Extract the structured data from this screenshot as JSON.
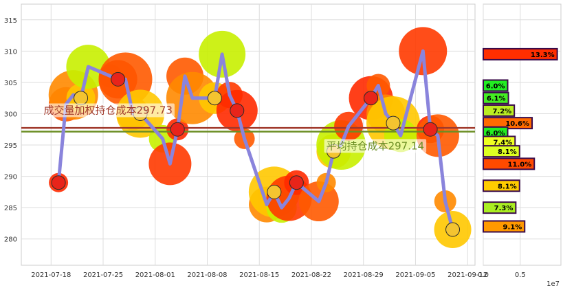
{
  "chart_data": {
    "type": "line",
    "main": {
      "x_ticks": [
        "2021-07-18",
        "2021-07-25",
        "2021-08-01",
        "2021-08-08",
        "2021-08-15",
        "2021-08-22",
        "2021-08-29",
        "2021-09-05",
        "2021-09-12"
      ],
      "y_ticks": [
        280,
        285,
        290,
        295,
        300,
        305,
        310,
        315
      ],
      "xlim": [
        "2021-07-14",
        "2021-09-13"
      ],
      "ylim": [
        275.8,
        317.5
      ],
      "grid": true,
      "series": [
        {
          "color": "#8a84dc",
          "points": [
            [
              "2021-07-19",
              289.0
            ],
            [
              "2021-07-20",
              301.5
            ],
            [
              "2021-07-21",
              303.0
            ],
            [
              "2021-07-22",
              302.5
            ],
            [
              "2021-07-23",
              307.5
            ],
            [
              "2021-07-26",
              306.0
            ],
            [
              "2021-07-27",
              305.5
            ],
            [
              "2021-07-28",
              305.5
            ],
            [
              "2021-07-29",
              300.0
            ],
            [
              "2021-07-30",
              300.0
            ],
            [
              "2021-08-02",
              296.0
            ],
            [
              "2021-08-03",
              292.0
            ],
            [
              "2021-08-04",
              297.5
            ],
            [
              "2021-08-05",
              306.0
            ],
            [
              "2021-08-06",
              302.5
            ],
            [
              "2021-08-09",
              302.5
            ],
            [
              "2021-08-10",
              309.5
            ],
            [
              "2021-08-11",
              303.0
            ],
            [
              "2021-08-12",
              300.5
            ],
            [
              "2021-08-13",
              296.0
            ],
            [
              "2021-08-16",
              285.5
            ],
            [
              "2021-08-17",
              287.5
            ],
            [
              "2021-08-18",
              285.0
            ],
            [
              "2021-08-19",
              286.5
            ],
            [
              "2021-08-20",
              289.0
            ],
            [
              "2021-08-23",
              286.0
            ],
            [
              "2021-08-24",
              289.0
            ],
            [
              "2021-08-25",
              294.0
            ],
            [
              "2021-08-26",
              295.0
            ],
            [
              "2021-08-27",
              298.0
            ],
            [
              "2021-08-30",
              302.5
            ],
            [
              "2021-08-31",
              304.5
            ],
            [
              "2021-09-01",
              300.0
            ],
            [
              "2021-09-02",
              298.5
            ],
            [
              "2021-09-03",
              296.5
            ],
            [
              "2021-09-06",
              310.0
            ],
            [
              "2021-09-07",
              297.5
            ],
            [
              "2021-09-08",
              296.5
            ],
            [
              "2021-09-09",
              286.0
            ],
            [
              "2021-09-10",
              281.5
            ]
          ]
        }
      ],
      "hlines": [
        {
          "value": 297.73,
          "color": "#a0392b"
        },
        {
          "value": 297.14,
          "color": "#6b8e23"
        }
      ],
      "annotations": [
        {
          "text": "成交量加权持仓成本297.73",
          "x": "2021-07-17",
          "y": 300.0,
          "color": "#a0392b"
        },
        {
          "text": "平均持仓成本297.14",
          "x": "2021-08-24",
          "y": 294.3,
          "color": "#6b8e23"
        }
      ]
    },
    "side": {
      "x_ticks": [
        "0.0",
        "0.5"
      ],
      "x_multiplier": "1e7",
      "xlim": [
        0,
        1.05
      ],
      "bars": [
        {
          "price": 309.5,
          "value": 1.0,
          "label": "13.3%",
          "color": "#ff2e00"
        },
        {
          "price": 304.5,
          "value": 0.33,
          "label": "6.0%",
          "color": "#22ee22"
        },
        {
          "price": 302.5,
          "value": 0.34,
          "label": "6.1%",
          "color": "#44ee22"
        },
        {
          "price": 300.5,
          "value": 0.42,
          "label": "7.2%",
          "color": "#bbee22"
        },
        {
          "price": 298.5,
          "value": 0.66,
          "label": "10.6%",
          "color": "#ff6a00"
        },
        {
          "price": 297.0,
          "value": 0.33,
          "label": "6.0%",
          "color": "#22ee22"
        },
        {
          "price": 295.5,
          "value": 0.43,
          "label": "7.4%",
          "color": "#eeff22"
        },
        {
          "price": 294.0,
          "value": 0.49,
          "label": "8.1%",
          "color": "#ddff22"
        },
        {
          "price": 292.0,
          "value": 0.69,
          "label": "11.0%",
          "color": "#ff4a00"
        },
        {
          "price": 288.5,
          "value": 0.49,
          "label": "8.1%",
          "color": "#ffcc00"
        },
        {
          "price": 285.0,
          "value": 0.44,
          "label": "7.3%",
          "color": "#aaee22"
        },
        {
          "price": 282.0,
          "value": 0.56,
          "label": "9.1%",
          "color": "#ff9900"
        }
      ]
    }
  }
}
